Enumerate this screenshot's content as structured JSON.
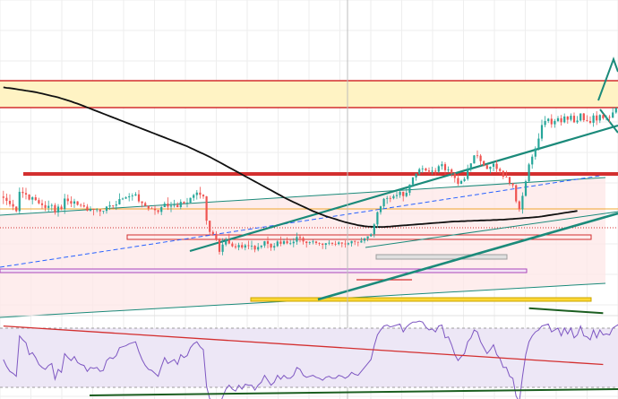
{
  "chart_data": {
    "type": "candlestick",
    "colors": {
      "up": "#26a69a",
      "down": "#ef5350",
      "ma": "#111111",
      "rsi": "#7e57c2",
      "trend_teal": "#1b8a7a",
      "trend_red": "#d32f2f",
      "zone_fill": "#fff3c4",
      "range_fill": "#fde7e7",
      "rsi_band_fill": "#ede7f6",
      "ma_dashed": "#2962ff",
      "grid": "#eeeeee"
    },
    "price_axis": {
      "min": 0,
      "max": 100
    },
    "rsi_axis": {
      "min": 0,
      "max": 100,
      "levels": [
        70,
        30
      ]
    },
    "candles": [
      [
        59.2,
        58.7,
        61.5,
        56.2
      ],
      [
        58.7,
        57.5,
        60.4,
        55.8
      ],
      [
        57.5,
        56.2,
        60.1,
        55.2
      ],
      [
        56.2,
        55.2,
        57.9,
        53.8
      ],
      [
        55.2,
        53.4,
        55.3,
        52.9
      ],
      [
        53.4,
        61.1,
        62.8,
        52.1
      ],
      [
        61.1,
        60.6,
        62.9,
        58.7
      ],
      [
        60.6,
        60.0,
        62.7,
        58.1
      ],
      [
        60.0,
        58.0,
        60.2,
        57.7
      ],
      [
        58.0,
        58.9,
        59.3,
        56.1
      ],
      [
        58.9,
        57.8,
        60.0,
        57.5
      ],
      [
        57.8,
        56.5,
        58.7,
        56.1
      ],
      [
        56.5,
        55.8,
        58.0,
        54.2
      ],
      [
        55.8,
        54.7,
        57.4,
        53.4
      ],
      [
        54.7,
        55.5,
        57.6,
        53.1
      ],
      [
        55.5,
        55.8,
        56.5,
        53.5
      ],
      [
        55.8,
        52.9,
        56.6,
        52.0
      ],
      [
        52.9,
        55.2,
        56.2,
        51.2
      ],
      [
        55.2,
        54.2,
        56.0,
        53.8
      ],
      [
        54.2,
        58.4,
        60.3,
        52.3
      ],
      [
        58.4,
        57.4,
        60.0,
        55.9
      ],
      [
        57.4,
        56.4,
        59.3,
        55.0
      ],
      [
        56.4,
        57.3,
        58.3,
        54.7
      ],
      [
        57.3,
        55.9,
        57.4,
        55.6
      ],
      [
        55.9,
        55.7,
        56.5,
        54.9
      ],
      [
        55.7,
        55.2,
        56.9,
        54.8
      ],
      [
        55.2,
        53.6,
        56.2,
        53.3
      ],
      [
        53.6,
        54.3,
        55.3,
        53.2
      ],
      [
        54.3,
        53.9,
        54.4,
        51.7
      ],
      [
        53.9,
        54.1,
        54.6,
        53.0
      ],
      [
        54.1,
        53.3,
        54.2,
        51.4
      ],
      [
        53.3,
        53.5,
        53.5,
        52.3
      ],
      [
        53.5,
        55.2,
        55.4,
        52.4
      ],
      [
        55.2,
        55.7,
        57.3,
        53.9
      ],
      [
        55.7,
        55.6,
        55.8,
        54.2
      ],
      [
        55.6,
        56.1,
        57.5,
        53.9
      ],
      [
        56.1,
        58.2,
        60.5,
        56.0
      ],
      [
        58.2,
        58.4,
        58.8,
        57.8
      ],
      [
        58.4,
        58.9,
        59.3,
        58.2
      ],
      [
        58.9,
        59.3,
        60.6,
        57.3
      ],
      [
        59.3,
        59.6,
        60.5,
        57.6
      ],
      [
        59.6,
        60.1,
        61.0,
        59.4
      ],
      [
        60.1,
        57.3,
        61.8,
        56.6
      ],
      [
        57.3,
        56.6,
        57.3,
        54.9
      ],
      [
        56.6,
        55.5,
        57.2,
        55.2
      ],
      [
        55.5,
        54.5,
        55.5,
        53.5
      ],
      [
        54.5,
        54.4,
        55.1,
        54.3
      ],
      [
        54.4,
        53.8,
        55.6,
        51.9
      ],
      [
        53.8,
        53.1,
        53.9,
        52.3
      ],
      [
        53.1,
        55.0,
        55.5,
        51.8
      ],
      [
        55.0,
        56.4,
        57.2,
        55.0
      ],
      [
        56.4,
        55.2,
        58.9,
        53.9
      ],
      [
        55.2,
        55.6,
        57.1,
        53.0
      ],
      [
        55.6,
        55.9,
        57.9,
        54.8
      ],
      [
        55.9,
        55.0,
        57.0,
        54.9
      ],
      [
        55.0,
        57.1,
        58.1,
        54.1
      ],
      [
        57.1,
        56.5,
        57.3,
        56.3
      ],
      [
        56.5,
        56.8,
        58.6,
        54.9
      ],
      [
        56.8,
        58.7,
        58.8,
        56.7
      ],
      [
        58.7,
        59.8,
        60.3,
        57.5
      ],
      [
        59.8,
        60.8,
        61.8,
        58.0
      ],
      [
        60.8,
        59.9,
        63.1,
        58.4
      ],
      [
        59.9,
        59.3,
        60.2,
        58.3
      ],
      [
        59.3,
        49.6,
        59.4,
        48.0
      ],
      [
        49.6,
        45.1,
        49.6,
        44.0
      ],
      [
        45.1,
        44.2,
        45.8,
        43.6
      ],
      [
        44.2,
        42.1,
        45.4,
        41.5
      ],
      [
        42.1,
        37.2,
        42.7,
        36.1
      ],
      [
        37.2,
        40.1,
        42.6,
        35.8
      ],
      [
        40.1,
        41.9,
        42.9,
        39.4
      ],
      [
        41.9,
        40.5,
        44.4,
        40.2
      ],
      [
        40.5,
        39.4,
        41.2,
        39.0
      ],
      [
        39.4,
        39.0,
        40.5,
        38.3
      ],
      [
        39.0,
        39.9,
        40.8,
        37.8
      ],
      [
        39.9,
        38.9,
        41.0,
        38.3
      ],
      [
        38.9,
        39.8,
        40.4,
        37.8
      ],
      [
        39.8,
        39.6,
        41.6,
        38.2
      ],
      [
        39.6,
        39.6,
        41.6,
        38.0
      ],
      [
        39.6,
        38.1,
        39.9,
        37.0
      ],
      [
        38.1,
        39.1,
        40.7,
        37.4
      ],
      [
        39.1,
        39.7,
        39.8,
        38.4
      ],
      [
        39.7,
        41.4,
        41.5,
        38.8
      ],
      [
        41.4,
        40.4,
        43.3,
        38.6
      ],
      [
        40.4,
        38.9,
        40.6,
        37.6
      ],
      [
        38.9,
        39.5,
        40.7,
        37.7
      ],
      [
        39.5,
        41.3,
        41.8,
        39.1
      ],
      [
        41.3,
        40.4,
        43.3,
        39.4
      ],
      [
        40.4,
        41.4,
        42.4,
        39.9
      ],
      [
        41.4,
        40.6,
        43.0,
        40.2
      ],
      [
        40.6,
        40.6,
        41.9,
        39.9
      ],
      [
        40.6,
        41.2,
        42.6,
        39.0
      ],
      [
        41.2,
        43.1,
        44.8,
        40.0
      ],
      [
        43.1,
        42.7,
        43.8,
        41.0
      ],
      [
        42.7,
        41.3,
        43.3,
        40.1
      ],
      [
        41.3,
        40.7,
        41.4,
        38.9
      ],
      [
        40.7,
        41.0,
        41.4,
        40.0
      ],
      [
        41.0,
        41.3,
        42.0,
        40.2
      ],
      [
        41.3,
        40.7,
        41.5,
        40.0
      ],
      [
        40.7,
        40.5,
        41.0,
        39.6
      ],
      [
        40.5,
        40.0,
        40.6,
        38.3
      ],
      [
        40.0,
        40.6,
        40.7,
        38.2
      ],
      [
        40.6,
        40.8,
        41.8,
        39.8
      ],
      [
        40.8,
        40.4,
        40.9,
        39.7
      ],
      [
        40.4,
        40.3,
        41.5,
        39.5
      ],
      [
        40.3,
        40.9,
        41.4,
        39.8
      ],
      [
        40.9,
        40.5,
        41.0,
        39.0
      ],
      [
        40.5,
        40.2,
        41.8,
        38.9
      ],
      [
        40.2,
        40.6,
        40.9,
        39.8
      ],
      [
        40.6,
        41.5,
        41.6,
        39.3
      ],
      [
        41.5,
        41.2,
        41.7,
        39.9
      ],
      [
        41.2,
        40.9,
        41.2,
        39.4
      ],
      [
        40.9,
        41.6,
        42.9,
        40.8
      ],
      [
        41.6,
        42.5,
        42.9,
        40.6
      ],
      [
        42.5,
        43.4,
        43.4,
        41.4
      ],
      [
        43.4,
        44.2,
        44.6,
        43.2
      ],
      [
        44.2,
        48.1,
        48.6,
        42.9
      ],
      [
        48.1,
        53.0,
        53.3,
        46.8
      ],
      [
        53.0,
        55.3,
        55.6,
        52.0
      ],
      [
        55.3,
        58.3,
        58.6,
        54.2
      ],
      [
        58.3,
        58.6,
        59.5,
        56.3
      ],
      [
        58.6,
        58.5,
        59.5,
        57.0
      ],
      [
        58.5,
        59.4,
        60.1,
        58.1
      ],
      [
        59.4,
        59.8,
        61.2,
        58.3
      ],
      [
        59.8,
        61.1,
        62.2,
        58.7
      ],
      [
        61.1,
        59.4,
        61.2,
        57.3
      ],
      [
        59.4,
        60.7,
        62.6,
        58.9
      ],
      [
        60.7,
        64.0,
        64.1,
        59.6
      ],
      [
        64.0,
        66.8,
        67.0,
        63.0
      ],
      [
        66.8,
        68.3,
        68.5,
        65.5
      ],
      [
        68.3,
        70.1,
        70.7,
        67.6
      ],
      [
        70.1,
        70.4,
        71.6,
        68.6
      ],
      [
        70.4,
        69.6,
        70.7,
        69.2
      ],
      [
        69.6,
        69.1,
        70.8,
        68.4
      ],
      [
        69.1,
        69.5,
        71.1,
        68.0
      ],
      [
        69.5,
        69.1,
        70.6,
        67.5
      ],
      [
        69.1,
        71.3,
        71.9,
        68.5
      ],
      [
        71.3,
        72.1,
        73.2,
        69.9
      ],
      [
        72.1,
        69.7,
        72.9,
        68.0
      ],
      [
        69.7,
        70.0,
        71.2,
        68.8
      ],
      [
        70.0,
        68.5,
        70.5,
        66.9
      ],
      [
        68.5,
        66.6,
        68.8,
        64.8
      ],
      [
        66.6,
        64.3,
        68.1,
        63.5
      ],
      [
        64.3,
        65.4,
        65.9,
        64.1
      ],
      [
        65.4,
        66.2,
        67.0,
        65.1
      ],
      [
        66.2,
        70.4,
        71.9,
        65.5
      ],
      [
        70.4,
        72.4,
        72.5,
        69.1
      ],
      [
        72.4,
        75.6,
        75.7,
        72.3
      ],
      [
        75.6,
        75.5,
        77.6,
        74.4
      ],
      [
        75.5,
        73.3,
        76.1,
        71.5
      ],
      [
        73.3,
        71.7,
        73.6,
        71.2
      ],
      [
        71.7,
        70.2,
        72.1,
        70.1
      ],
      [
        70.2,
        71.1,
        71.2,
        68.4
      ],
      [
        71.1,
        72.3,
        72.5,
        69.3
      ],
      [
        72.3,
        70.2,
        73.6,
        68.7
      ],
      [
        70.2,
        69.4,
        70.8,
        68.2
      ],
      [
        69.4,
        67.1,
        69.7,
        66.1
      ],
      [
        67.1,
        67.0,
        69.5,
        66.9
      ],
      [
        67.0,
        64.5,
        67.1,
        63.6
      ],
      [
        64.5,
        63.7,
        64.7,
        62.7
      ],
      [
        63.7,
        57.3,
        64.1,
        56.6
      ],
      [
        57.3,
        54.1,
        57.7,
        53.2
      ],
      [
        54.1,
        59.5,
        60.9,
        52.4
      ],
      [
        59.5,
        65.3,
        65.9,
        59.2
      ],
      [
        65.3,
        72.0,
        72.6,
        64.9
      ],
      [
        72.0,
        75.1,
        76.0,
        70.3
      ],
      [
        75.1,
        78.4,
        79.2,
        73.9
      ],
      [
        78.4,
        82.3,
        84.4,
        77.6
      ],
      [
        82.3,
        87.7,
        89.8,
        81.3
      ],
      [
        87.7,
        89.3,
        91.3,
        86.8
      ],
      [
        89.3,
        90.2,
        90.5,
        88.5
      ],
      [
        90.2,
        88.0,
        92.0,
        86.6
      ],
      [
        88.0,
        89.3,
        90.1,
        86.6
      ],
      [
        89.3,
        90.4,
        91.3,
        88.9
      ],
      [
        90.4,
        88.8,
        91.7,
        87.5
      ],
      [
        88.8,
        91.1,
        92.3,
        88.4
      ],
      [
        91.1,
        89.8,
        91.3,
        88.2
      ],
      [
        89.8,
        91.4,
        92.3,
        89.2
      ],
      [
        91.4,
        88.8,
        92.7,
        88.5
      ],
      [
        88.8,
        89.5,
        91.3,
        88.2
      ],
      [
        89.5,
        92.3,
        92.4,
        89.1
      ],
      [
        92.3,
        89.6,
        92.5,
        88.9
      ],
      [
        89.6,
        89.3,
        91.6,
        89.0
      ],
      [
        89.3,
        88.6,
        91.1,
        88.1
      ],
      [
        88.6,
        91.5,
        92.4,
        87.0
      ],
      [
        91.5,
        89.5,
        93.2,
        87.7
      ],
      [
        89.5,
        91.7,
        92.0,
        88.5
      ],
      [
        91.7,
        90.4,
        92.1,
        89.8
      ],
      [
        90.4,
        90.9,
        91.6,
        89.5
      ],
      [
        90.9,
        90.6,
        91.7,
        88.8
      ],
      [
        90.6,
        92.7,
        94.6,
        90.5
      ],
      [
        92.7,
        94.5,
        94.7,
        92.2
      ],
      [
        94.5,
        97.0,
        98.5,
        93.9
      ],
      [
        97.0,
        98.1,
        98.2,
        95.8
      ],
      [
        98.1,
        96.1,
        99.7,
        95.3
      ],
      [
        96.1,
        97.6,
        97.7,
        96.0
      ],
      [
        97.6,
        98.1,
        98.3,
        97.0
      ],
      [
        98.1,
        94.4,
        98.4,
        93.5
      ]
    ],
    "ma_slow": [
      102.7,
      102.5,
      102.4,
      102.2,
      102.0,
      101.8,
      101.6,
      101.4,
      101.2,
      101.0,
      100.8,
      100.5,
      100.2,
      99.9,
      99.6,
      99.3,
      99.0,
      98.7,
      98.3,
      97.9,
      97.5,
      97.1,
      96.6,
      96.2,
      95.7,
      95.2,
      94.7,
      94.2,
      93.7,
      93.2,
      92.7,
      92.2,
      91.7,
      91.2,
      90.7,
      90.2,
      89.7,
      89.2,
      88.7,
      88.2,
      87.7,
      87.2,
      86.7,
      86.2,
      85.7,
      85.2,
      84.7,
      84.2,
      83.7,
      83.2,
      82.7,
      82.2,
      81.7,
      81.2,
      80.7,
      80.2,
      79.7,
      79.2,
      78.6,
      78.0,
      77.4,
      76.8,
      76.2,
      75.6,
      75.0,
      74.3,
      73.6,
      72.9,
      72.2,
      71.5,
      70.8,
      70.1,
      69.4,
      68.7,
      68.0,
      67.3,
      66.6,
      65.9,
      65.2,
      64.5,
      63.8,
      63.1,
      62.4,
      61.7,
      61.0,
      60.3,
      59.6,
      58.9,
      58.2,
      57.6,
      57.0,
      56.4,
      55.8,
      55.2,
      54.6,
      54.0,
      53.4,
      52.9,
      52.4,
      51.9,
      51.4,
      51.0,
      50.6,
      50.2,
      49.8,
      49.4,
      49.0,
      48.7,
      48.4,
      48.1,
      47.8,
      47.6,
      47.4,
      47.3,
      47.2,
      47.1,
      47.1,
      47.1,
      47.1,
      47.2,
      47.3,
      47.4,
      47.5,
      47.6,
      47.7,
      47.8,
      47.9,
      48.0,
      48.1,
      48.2,
      48.3,
      48.4,
      48.5,
      48.6,
      48.7,
      48.8,
      48.9,
      49.0,
      49.1,
      49.2,
      49.3,
      49.3,
      49.4,
      49.4,
      49.5,
      49.5,
      49.6,
      49.6,
      49.7,
      49.7,
      49.8,
      49.8,
      49.9,
      49.9,
      50.0,
      50.0,
      50.1,
      50.2,
      50.3,
      50.4,
      50.5,
      50.6,
      50.7,
      50.8,
      50.9,
      51.0,
      51.1,
      51.3,
      51.5,
      51.7,
      51.9,
      52.1,
      52.3,
      52.5,
      52.7,
      52.9,
      53.1,
      53.3,
      53.5
    ],
    "rsi": [
      50,
      43,
      38,
      36,
      33,
      74,
      70,
      67,
      55,
      57,
      52,
      45,
      42,
      40,
      44,
      46,
      30,
      40,
      37,
      56,
      52,
      49,
      53,
      47,
      45,
      44,
      38,
      42,
      41,
      42,
      38,
      39,
      49,
      52,
      51,
      54,
      62,
      63,
      64,
      66,
      67,
      68,
      58,
      50,
      44,
      40,
      39,
      36,
      33,
      43,
      52,
      46,
      48,
      50,
      45,
      55,
      52,
      54,
      62,
      66,
      68,
      63,
      60,
      23,
      10,
      9,
      7,
      4,
      12,
      20,
      24,
      20,
      18,
      24,
      20,
      25,
      24,
      24,
      19,
      24,
      27,
      34,
      29,
      24,
      27,
      34,
      30,
      34,
      31,
      31,
      34,
      42,
      40,
      34,
      32,
      33,
      34,
      32,
      31,
      29,
      32,
      33,
      31,
      31,
      34,
      33,
      31,
      33,
      37,
      35,
      34,
      38,
      42,
      46,
      50,
      64,
      75,
      80,
      84,
      85,
      83,
      84,
      85,
      86,
      78,
      83,
      86,
      88,
      88,
      89,
      88,
      83,
      80,
      81,
      78,
      84,
      85,
      72,
      73,
      65,
      55,
      49,
      53,
      56,
      68,
      72,
      80,
      78,
      68,
      62,
      56,
      60,
      65,
      55,
      51,
      42,
      42,
      33,
      31,
      13,
      7,
      33,
      55,
      68,
      74,
      78,
      80,
      84,
      85,
      86,
      78,
      80,
      82,
      74,
      82,
      76,
      82,
      72,
      75,
      84,
      74,
      73,
      70,
      80,
      72,
      80,
      75,
      76,
      75,
      82,
      84,
      86,
      87,
      80,
      83,
      84,
      70
    ],
    "rsi_trend_red": {
      "from": [
        0,
        84
      ],
      "to": [
        186,
        45
      ]
    },
    "rsi_trend_green": {
      "from": [
        163,
        102
      ],
      "to": [
        186,
        97
      ]
    }
  }
}
